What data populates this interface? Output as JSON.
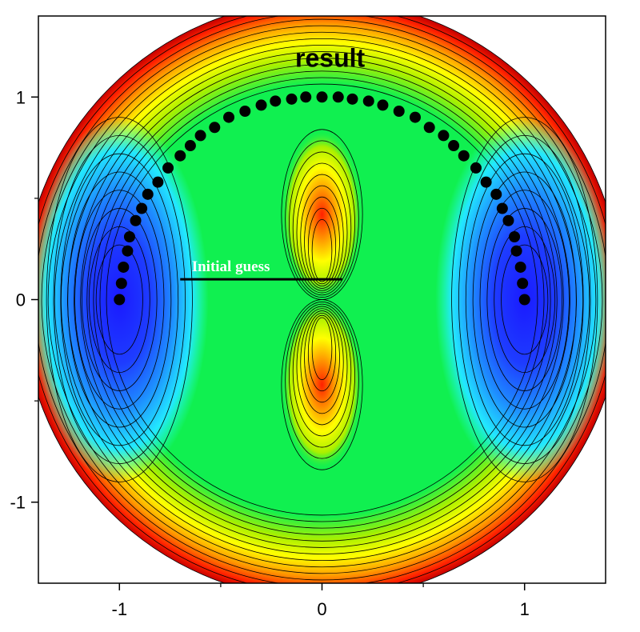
{
  "chart_data": {
    "type": "contour",
    "title": "",
    "xlabel": "",
    "ylabel": "",
    "xlim": [
      -1.4,
      1.4
    ],
    "ylim": [
      -1.4,
      1.4
    ],
    "xticks": [
      {
        "value": -1,
        "label": "-1"
      },
      {
        "value": 0,
        "label": "0"
      },
      {
        "value": 1,
        "label": "1"
      }
    ],
    "yticks": [
      {
        "value": 1,
        "label": "1"
      },
      {
        "value": 0,
        "label": "0"
      },
      {
        "value": -1,
        "label": "-1"
      }
    ],
    "minor_ticks": [
      -0.5,
      0.5
    ],
    "grid": false,
    "colormap": [
      "#1a1aff",
      "#1e6cff",
      "#22e8ff",
      "#10f050",
      "#aaf000",
      "#ffff00",
      "#ff9a00",
      "#ff2000",
      "#c40000"
    ],
    "annotations": [
      {
        "text": "result",
        "x": 0.04,
        "y": 1.15
      },
      {
        "text": "Initial guess",
        "x": -0.45,
        "y": 0.14
      }
    ],
    "series": [
      {
        "type": "line",
        "points": [
          [
            -0.7,
            0.1
          ],
          [
            0.1,
            0.1
          ]
        ],
        "color": "#000000"
      },
      {
        "type": "scatter",
        "color": "#000000",
        "points": [
          [
            -1.0,
            0.0
          ],
          [
            -0.99,
            0.08
          ],
          [
            -0.98,
            0.16
          ],
          [
            -0.96,
            0.24
          ],
          [
            -0.95,
            0.31
          ],
          [
            -0.92,
            0.39
          ],
          [
            -0.89,
            0.45
          ],
          [
            -0.86,
            0.52
          ],
          [
            -0.81,
            0.58
          ],
          [
            -0.76,
            0.65
          ],
          [
            -0.7,
            0.71
          ],
          [
            -0.65,
            0.76
          ],
          [
            -0.6,
            0.81
          ],
          [
            -0.53,
            0.85
          ],
          [
            -0.46,
            0.9
          ],
          [
            -0.38,
            0.93
          ],
          [
            -0.3,
            0.96
          ],
          [
            -0.23,
            0.98
          ],
          [
            -0.15,
            0.99
          ],
          [
            -0.08,
            1.0
          ],
          [
            0.0,
            1.0
          ],
          [
            0.08,
            1.0
          ],
          [
            0.15,
            0.99
          ],
          [
            0.23,
            0.98
          ],
          [
            0.3,
            0.96
          ],
          [
            0.38,
            0.93
          ],
          [
            0.46,
            0.9
          ],
          [
            0.53,
            0.85
          ],
          [
            0.6,
            0.81
          ],
          [
            0.65,
            0.76
          ],
          [
            0.7,
            0.71
          ],
          [
            0.76,
            0.65
          ],
          [
            0.81,
            0.58
          ],
          [
            0.86,
            0.52
          ],
          [
            0.89,
            0.45
          ],
          [
            0.92,
            0.39
          ],
          [
            0.95,
            0.31
          ],
          [
            0.96,
            0.24
          ],
          [
            0.98,
            0.16
          ],
          [
            0.99,
            0.08
          ],
          [
            1.0,
            0.0
          ]
        ]
      }
    ]
  }
}
